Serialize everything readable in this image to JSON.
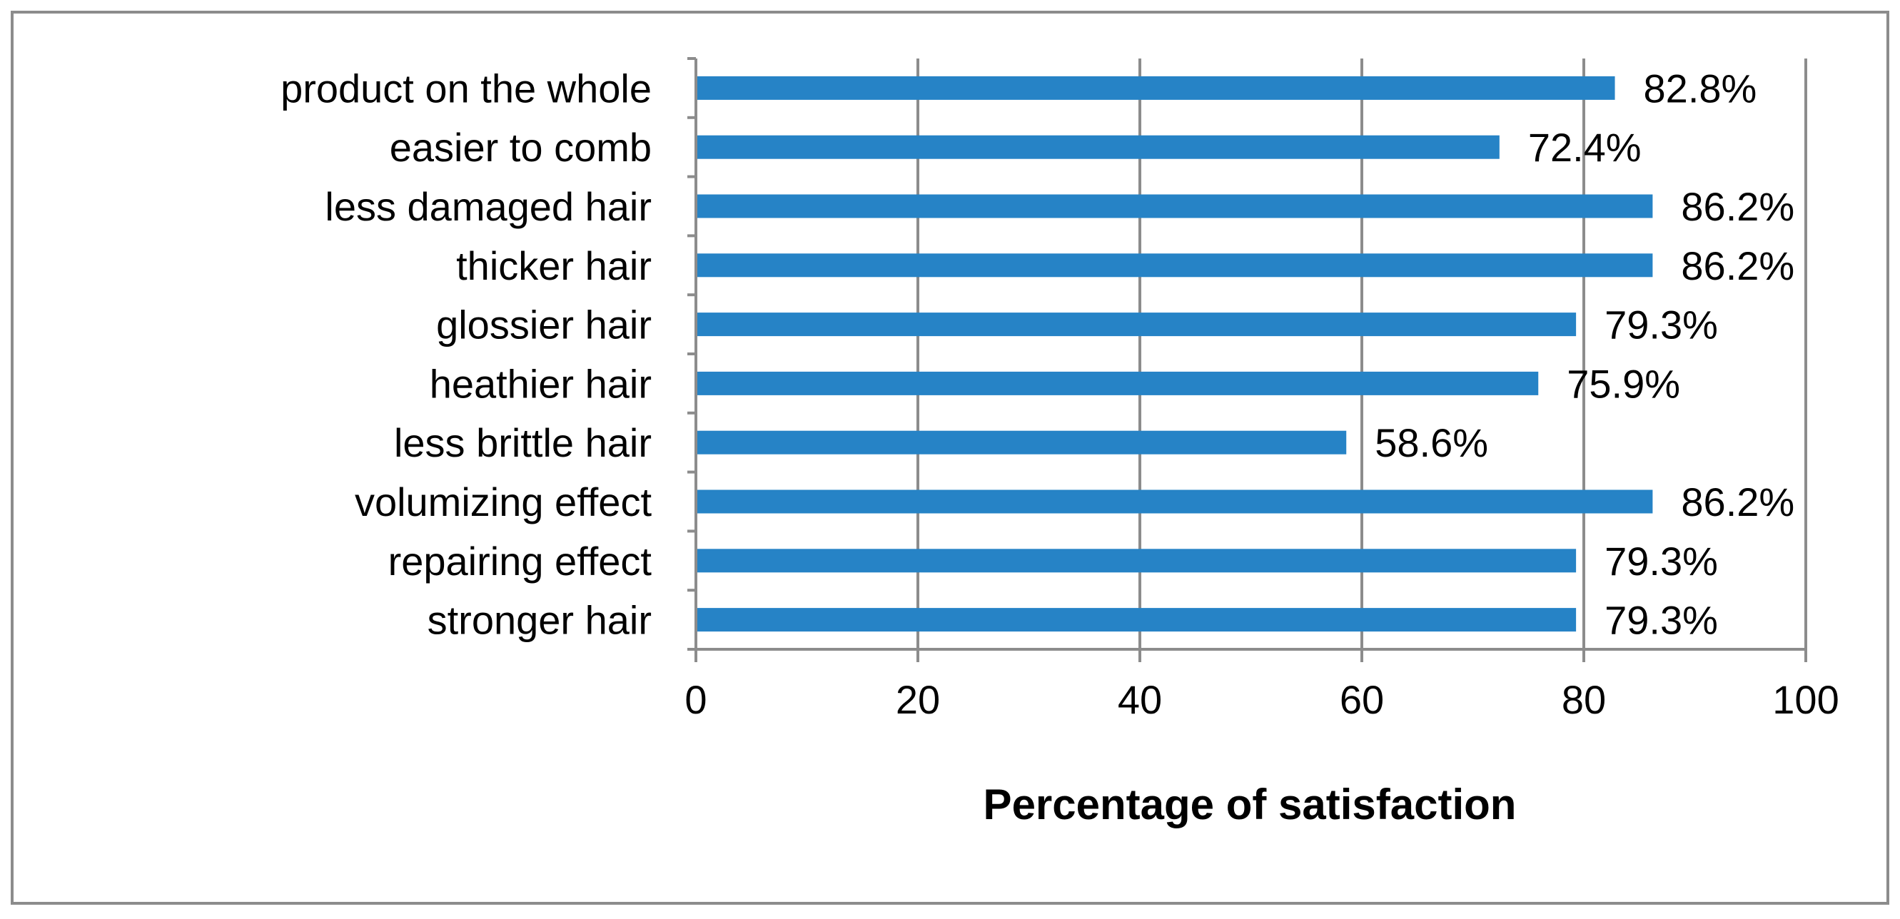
{
  "chart_data": {
    "type": "bar",
    "orientation": "horizontal",
    "title": "",
    "xlabel": "Percentage of satisfaction",
    "ylabel": "",
    "xlim": [
      0,
      100
    ],
    "x_ticks": [
      "0",
      "20",
      "40",
      "60",
      "80",
      "100"
    ],
    "grid": true,
    "legend": "none",
    "categories": [
      "product on the whole",
      "easier to comb",
      "less damaged hair",
      "thicker hair",
      "glossier hair",
      "heathier hair",
      "less brittle hair",
      "volumizing effect",
      "repairing effect",
      "stronger hair"
    ],
    "values": [
      82.8,
      72.4,
      86.2,
      86.2,
      79.3,
      75.9,
      58.6,
      86.2,
      79.3,
      79.3
    ],
    "data_labels": [
      "82.8%",
      "72.4%",
      "86.2%",
      "86.2%",
      "79.3%",
      "75.9%",
      "58.6%",
      "86.2%",
      "79.3%",
      "79.3%"
    ],
    "colors": {
      "bar": "#2683C6",
      "grid": "#8C8C8C",
      "axis": "#8C8C8C",
      "border": "#8C8C8C",
      "text": "#000000"
    }
  }
}
